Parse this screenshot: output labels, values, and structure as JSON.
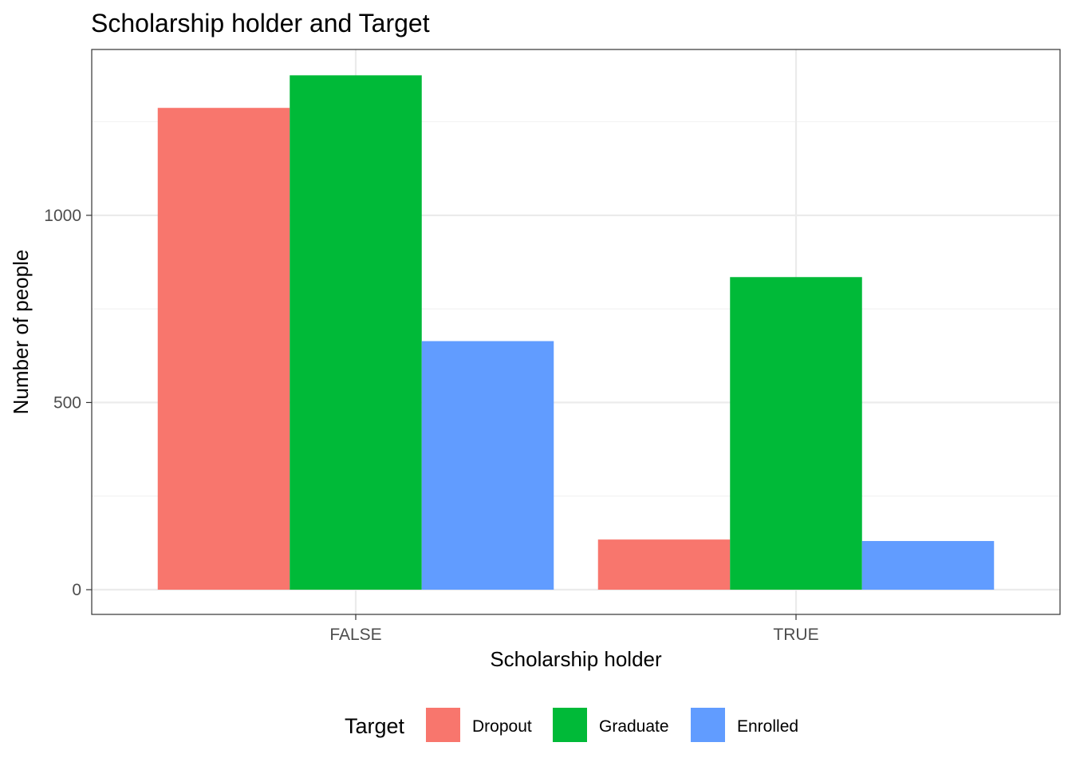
{
  "chart_data": {
    "type": "bar",
    "title": "Scholarship holder and Target",
    "xlabel": "Scholarship holder",
    "ylabel": "Number of people",
    "categories": [
      "FALSE",
      "TRUE"
    ],
    "series": [
      {
        "name": "Dropout",
        "color": "#F8766D",
        "values": [
          1287,
          134
        ]
      },
      {
        "name": "Graduate",
        "color": "#00BA38",
        "values": [
          1374,
          835
        ]
      },
      {
        "name": "Enrolled",
        "color": "#619CFF",
        "values": [
          664,
          130
        ]
      }
    ],
    "ylim": [
      -66,
      1443
    ],
    "y_ticks": [
      0,
      500,
      1000
    ],
    "y_minor_ticks": [
      250,
      750,
      1250
    ],
    "grid": true,
    "legend": {
      "title": "Target",
      "position": "bottom"
    },
    "colors": {
      "panel_border": "#333333",
      "grid_major": "#EBEBEB",
      "grid_minor": "#F3F3F3",
      "axis_text": "#4D4D4D"
    }
  }
}
